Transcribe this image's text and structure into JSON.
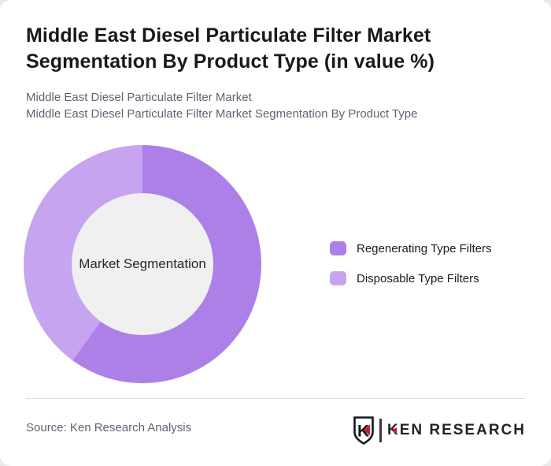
{
  "header": {
    "title_line1": "Middle East Diesel Particulate Filter Market",
    "title_line2": "Segmentation By Product Type (in value %)",
    "subtitle_line1": "Middle East Diesel Particulate Filter Market",
    "subtitle_line2": "Middle East Diesel Particulate Filter Market Segmentation By Product Type"
  },
  "chart_data": {
    "type": "pie",
    "subtype": "donut",
    "title": "Middle East Diesel Particulate Filter Market Segmentation By Product Type (in value %)",
    "units": "value %",
    "center_label": "Market Segmentation",
    "start_angle_deg": 0,
    "direction": "clockwise",
    "legend_position": "right",
    "data_labels_shown": false,
    "series": [
      {
        "name": "Regenerating Type Filters",
        "value": 60,
        "color": "#ad80e8"
      },
      {
        "name": "Disposable Type Filters",
        "value": 40,
        "color": "#c6a4f0"
      }
    ]
  },
  "footer": {
    "source": "Source: Ken Research Analysis",
    "brand": "KEN RESEARCH",
    "badge_letter": "K"
  },
  "colors": {
    "regenerating": "#ad80e8",
    "disposable": "#c6a4f0",
    "donut_hole": "#f0f0f1",
    "title_text": "#17191e",
    "muted_text": "#5c6572",
    "divider": "#dcdee1",
    "brand_red": "#c22031",
    "brand_dark": "#232427",
    "page_bg": "#e9e9ea",
    "card_bg": "#ffffff"
  }
}
